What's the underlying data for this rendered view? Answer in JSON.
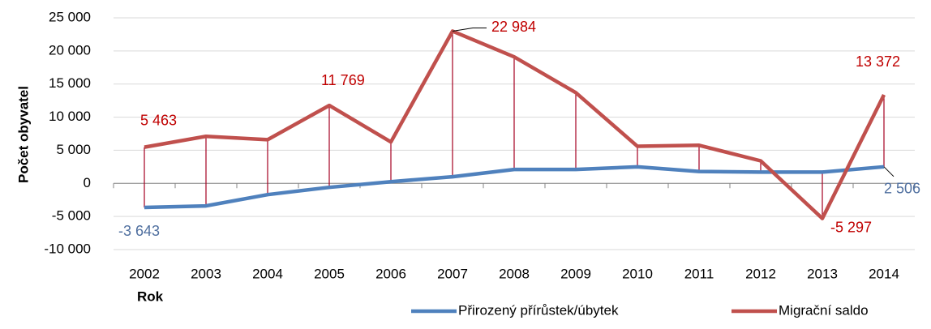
{
  "chart_data": {
    "type": "line",
    "x_label": "Rok",
    "y_label": "Počet obyvatel",
    "categories": [
      "2002",
      "2003",
      "2004",
      "2005",
      "2006",
      "2007",
      "2008",
      "2009",
      "2010",
      "2011",
      "2012",
      "2013",
      "2014"
    ],
    "series": [
      {
        "name": "Přirozený přírůstek/úbytek",
        "color": "#4f81bd",
        "values": [
          -3643,
          -3400,
          -1700,
          -600,
          250,
          1000,
          2100,
          2100,
          2500,
          1800,
          1700,
          1700,
          2506
        ],
        "value_labels": [
          "-3 643",
          null,
          null,
          null,
          null,
          null,
          null,
          null,
          null,
          null,
          null,
          null,
          "2 506"
        ]
      },
      {
        "name": "Migrační saldo",
        "color": "#c0504d",
        "values": [
          5463,
          7100,
          6600,
          11769,
          6250,
          22984,
          19100,
          13700,
          5600,
          5750,
          3400,
          -5297,
          13372
        ],
        "value_labels": [
          "5 463",
          null,
          null,
          "11 769",
          null,
          "22 984",
          null,
          null,
          null,
          null,
          null,
          "-5 297",
          "13 372"
        ]
      }
    ],
    "ylim": [
      -10000,
      25000
    ],
    "yticks": [
      {
        "value": -10000,
        "label": "-10 000"
      },
      {
        "value": -5000,
        "label": "-5 000"
      },
      0,
      {
        "value": 5000,
        "label": "5 000"
      },
      {
        "value": 10000,
        "label": "10 000"
      },
      {
        "value": 15000,
        "label": "15 000"
      },
      {
        "value": 20000,
        "label": "20 000"
      },
      {
        "value": 25000,
        "label": "25 000"
      }
    ],
    "grid": true,
    "drop_lines": true,
    "legend": "bottom-right"
  }
}
